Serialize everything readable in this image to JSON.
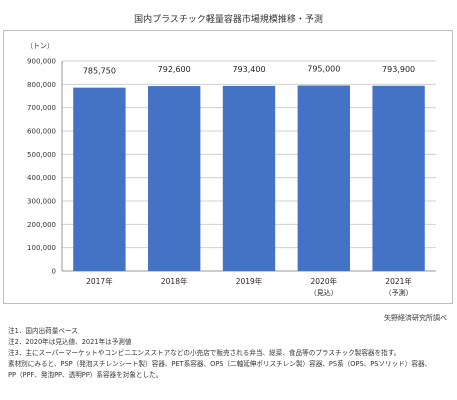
{
  "page": {
    "title": "国内プラスチック軽量容器市場規模推移・予測",
    "source": "矢野経済研究所調べ"
  },
  "chart_data": {
    "type": "bar",
    "unit_label": "（トン）",
    "categories": [
      "2017年",
      "2018年",
      "2019年",
      "2020年",
      "2021年"
    ],
    "category_sublabels": [
      "",
      "",
      "",
      "（見込）",
      "（予測）"
    ],
    "values": [
      785750,
      792600,
      793400,
      795000,
      793900
    ],
    "value_labels": [
      "785,750",
      "792,600",
      "793,400",
      "795,000",
      "793,900"
    ],
    "ylim": [
      0,
      900000
    ],
    "yticks": [
      0,
      100000,
      200000,
      300000,
      400000,
      500000,
      600000,
      700000,
      800000,
      900000
    ],
    "ytick_labels": [
      "0",
      "100,000",
      "200,000",
      "300,000",
      "400,000",
      "500,000",
      "600,000",
      "700,000",
      "800,000",
      "900,000"
    ],
    "grid": true,
    "bar_color": "#4472c4"
  },
  "notes": [
    "注1．国内出荷量ベース",
    "注2．2020年は見込値、2021年は予測値",
    "注3．主にスーパーマーケットやコンビニエンスストアなどの小売店で販売される弁当、総菜、食品等のプラスチック製容器を指す。",
    "素材別にみると、PSP（発泡スチレンシート製）容器、PET系容器、OPS（二軸延伸ポリスチレン製）容器、PS系（OPS、PSソリッド）容器、",
    "PP（PPF、発泡PP、透明PP）系容器を対象とした。"
  ]
}
